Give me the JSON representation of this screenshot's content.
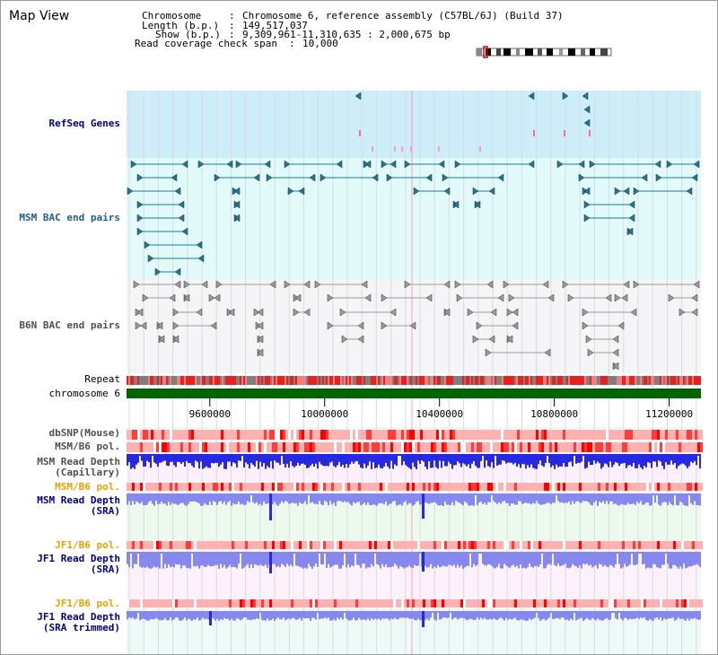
{
  "title": "Map View",
  "info": {
    "chromosome_key": "Chromosome",
    "chromosome_value": "Chromosome 6, reference assembly (C57BL/6J) (Build 37)",
    "length_key": "Length (b.p.)",
    "length_value": "149,517,037",
    "show_key": "Show (b.p.)",
    "show_value": "9,309,961-11,310,635 : 2,000,675 bp",
    "coverage_key": "Read coverage check span",
    "coverage_value": "10,000"
  },
  "view": {
    "start": 9309961,
    "end": 11310635
  },
  "ticks": [
    {
      "value": 9600000,
      "label": "9600000"
    },
    {
      "value": 10000000,
      "label": "10000000"
    },
    {
      "value": 10400000,
      "label": "10400000"
    },
    {
      "value": 10800000,
      "label": "10800000"
    },
    {
      "value": 11200000,
      "label": "11200000"
    }
  ],
  "tracks": {
    "refseq": "RefSeq Genes",
    "msm_bac": "MSM BAC end pairs",
    "b6n_bac": "B6N BAC end pairs",
    "repeat": "Repeat",
    "chromosome": "chromosome 6",
    "dbsnp": "dbSNP(Mouse)",
    "msm_pol_1": "MSM/B6 pol.",
    "msm_depth_cap_1": "MSM Read Depth",
    "msm_depth_cap_2": "(Capillary)",
    "msm_pol_2": "MSM/B6 pol.",
    "msm_depth_sra_1": "MSM Read Depth",
    "msm_depth_sra_2": "(SRA)",
    "jf1_pol_1": "JF1/B6 pol.",
    "jf1_depth_sra_1": "JF1 Read Depth",
    "jf1_depth_sra_2": "(SRA)",
    "jf1_pol_2": "JF1/B6 pol.",
    "jf1_depth_trim_1": "JF1 Read Depth",
    "jf1_depth_trim_2": "(SRA trimmed)"
  },
  "colors": {
    "refseq_bg": "#cdeef8",
    "msm_bg": "#e3fafb",
    "b6n_bg": "#f5f5f7",
    "chromosome": "#006400",
    "repeat_red": "#e8211e",
    "repeat_grey": "#7f7f7f",
    "teal_glyph": "#1e7893",
    "grey_glyph": "#9b9b9b",
    "depth_blue": "#2727e6",
    "depth_light": "#8787f0",
    "pol_light": "#ffcccc",
    "pol_red": "#ff3b3b",
    "highlight": "#ff66aa"
  }
}
